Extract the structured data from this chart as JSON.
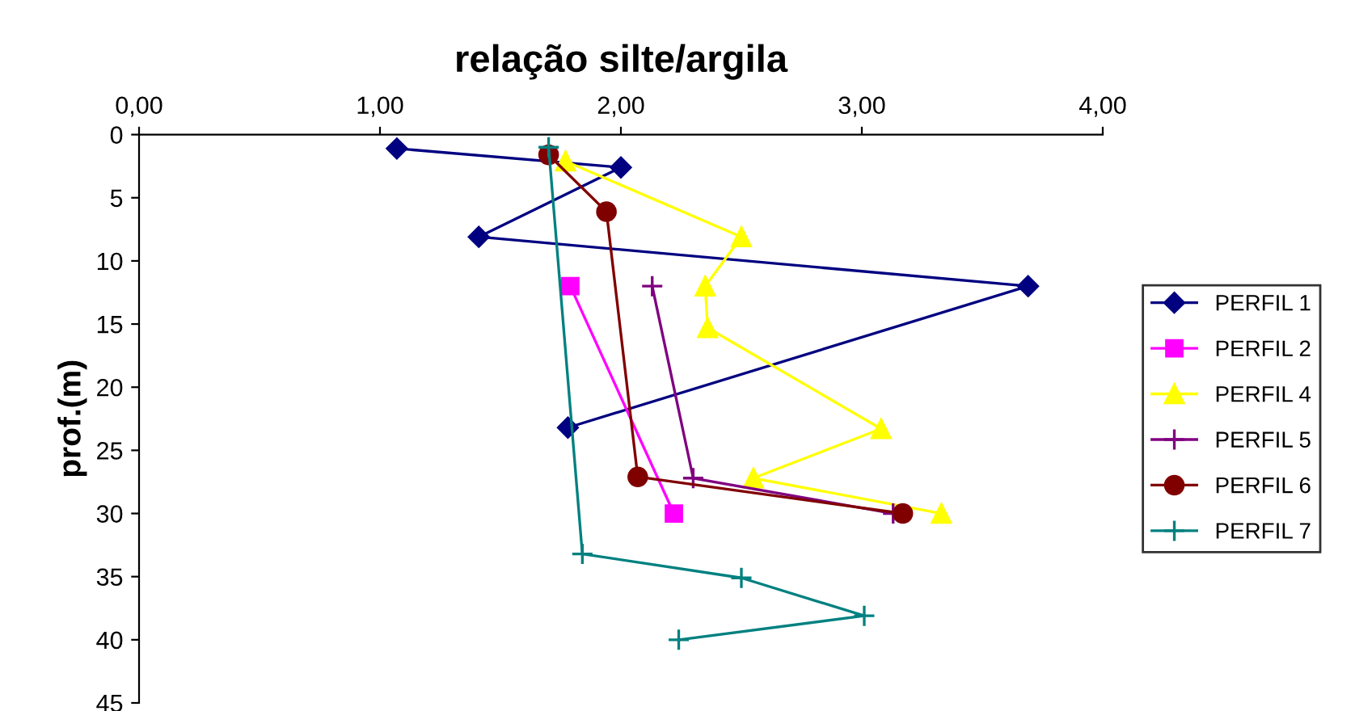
{
  "chart_data": {
    "type": "line",
    "title": "relação silte/argila",
    "ylabel": "prof.(m)",
    "xlim": [
      0,
      4
    ],
    "xticks": [
      {
        "value": 0,
        "label": "0,00"
      },
      {
        "value": 1,
        "label": "1,00"
      },
      {
        "value": 2,
        "label": "2,00"
      },
      {
        "value": 3,
        "label": "3,00"
      },
      {
        "value": 4,
        "label": "4,00"
      }
    ],
    "ylim": [
      45,
      0
    ],
    "yticks": [
      0,
      5,
      10,
      15,
      20,
      25,
      30,
      35,
      40,
      45
    ],
    "grid": false,
    "legend": "right",
    "line_style": "solid",
    "series": [
      {
        "name": "PERFIL 1",
        "color": "#000080",
        "marker": "diamond",
        "x": [
          1.07,
          2.0,
          1.41,
          3.69,
          1.78
        ],
        "values": [
          1.1,
          2.6,
          8.1,
          12.0,
          23.2
        ]
      },
      {
        "name": "PERFIL 2",
        "color": "#ff00ff",
        "marker": "square",
        "x": [
          1.79,
          2.22
        ],
        "values": [
          12.0,
          30.0
        ]
      },
      {
        "name": "PERFIL 4",
        "color": "#ffff00",
        "marker": "triangle",
        "x": [
          1.77,
          2.5,
          2.35,
          2.36,
          3.08,
          2.55,
          3.33
        ],
        "values": [
          2.1,
          8.1,
          12.0,
          15.3,
          23.3,
          27.2,
          30.0
        ]
      },
      {
        "name": "PERFIL 5",
        "color": "#800080",
        "marker": "cross",
        "x": [
          2.13,
          2.3,
          3.13
        ],
        "values": [
          12.0,
          27.2,
          30.0
        ]
      },
      {
        "name": "PERFIL 6",
        "color": "#800000",
        "marker": "circle",
        "x": [
          1.7,
          1.94,
          2.07,
          3.17
        ],
        "values": [
          1.6,
          6.1,
          27.1,
          30.0
        ]
      },
      {
        "name": "PERFIL 7",
        "color": "#008080",
        "marker": "cross",
        "x": [
          1.7,
          1.84,
          2.5,
          3.01,
          2.24
        ],
        "values": [
          1.0,
          33.2,
          35.1,
          38.1,
          40.0
        ]
      }
    ]
  }
}
